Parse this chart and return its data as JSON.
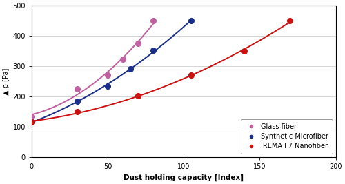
{
  "glass_fiber_x": [
    0,
    30,
    50,
    60,
    70,
    80
  ],
  "glass_fiber_y": [
    135,
    225,
    270,
    322,
    375,
    450
  ],
  "synth_micro_x": [
    0,
    30,
    50,
    65,
    80,
    105
  ],
  "synth_micro_y": [
    115,
    185,
    235,
    292,
    352,
    450
  ],
  "irema_x": [
    0,
    30,
    70,
    105,
    140,
    170
  ],
  "irema_y": [
    115,
    150,
    202,
    270,
    350,
    450
  ],
  "glass_color": "#c060a0",
  "synth_color": "#1a2f8a",
  "irema_color": "#cc1010",
  "xlabel": "Dust holding capacity [Index]",
  "ylabel": "▲ p [Pa]",
  "xlim": [
    0,
    200
  ],
  "ylim": [
    0,
    500
  ],
  "xticks": [
    0,
    50,
    100,
    150,
    200
  ],
  "yticks": [
    0,
    100,
    200,
    300,
    400,
    500
  ],
  "legend_labels": [
    "Glass fiber",
    "Synthetic Microfiber",
    "IREMA F7 Nanofiber"
  ],
  "bg_color": "#ffffff",
  "marker_size": 5.5,
  "linewidth": 1.4
}
